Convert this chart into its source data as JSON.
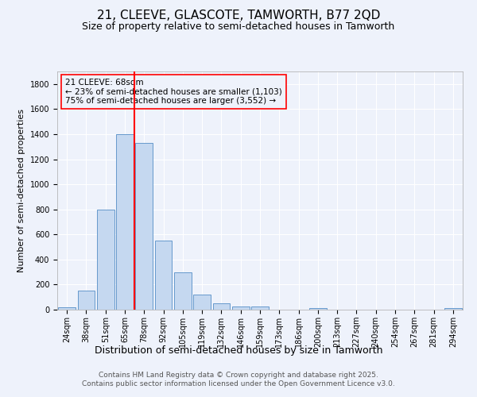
{
  "title1": "21, CLEEVE, GLASCOTE, TAMWORTH, B77 2QD",
  "title2": "Size of property relative to semi-detached houses in Tamworth",
  "xlabel": "Distribution of semi-detached houses by size in Tamworth",
  "ylabel": "Number of semi-detached properties",
  "footer": "Contains HM Land Registry data © Crown copyright and database right 2025.\nContains public sector information licensed under the Open Government Licence v3.0.",
  "bar_labels": [
    "24sqm",
    "38sqm",
    "51sqm",
    "65sqm",
    "78sqm",
    "92sqm",
    "105sqm",
    "119sqm",
    "132sqm",
    "146sqm",
    "159sqm",
    "173sqm",
    "186sqm",
    "200sqm",
    "213sqm",
    "227sqm",
    "240sqm",
    "254sqm",
    "267sqm",
    "281sqm",
    "294sqm"
  ],
  "bar_values": [
    20,
    150,
    800,
    1400,
    1330,
    550,
    300,
    120,
    50,
    25,
    25,
    0,
    0,
    15,
    0,
    0,
    0,
    0,
    0,
    0,
    15
  ],
  "bar_color": "#c5d8f0",
  "bar_edge_color": "#6699cc",
  "vline_x_idx": 3,
  "vline_color": "red",
  "annotation_text": "21 CLEEVE: 68sqm\n← 23% of semi-detached houses are smaller (1,103)\n75% of semi-detached houses are larger (3,552) →",
  "ylim": [
    0,
    1900
  ],
  "yticks": [
    0,
    200,
    400,
    600,
    800,
    1000,
    1200,
    1400,
    1600,
    1800
  ],
  "background_color": "#eef2fb",
  "grid_color": "#ffffff",
  "title1_fontsize": 11,
  "title2_fontsize": 9,
  "xlabel_fontsize": 9,
  "ylabel_fontsize": 8,
  "tick_fontsize": 7,
  "footer_fontsize": 6.5,
  "annotation_fontsize": 7.5
}
